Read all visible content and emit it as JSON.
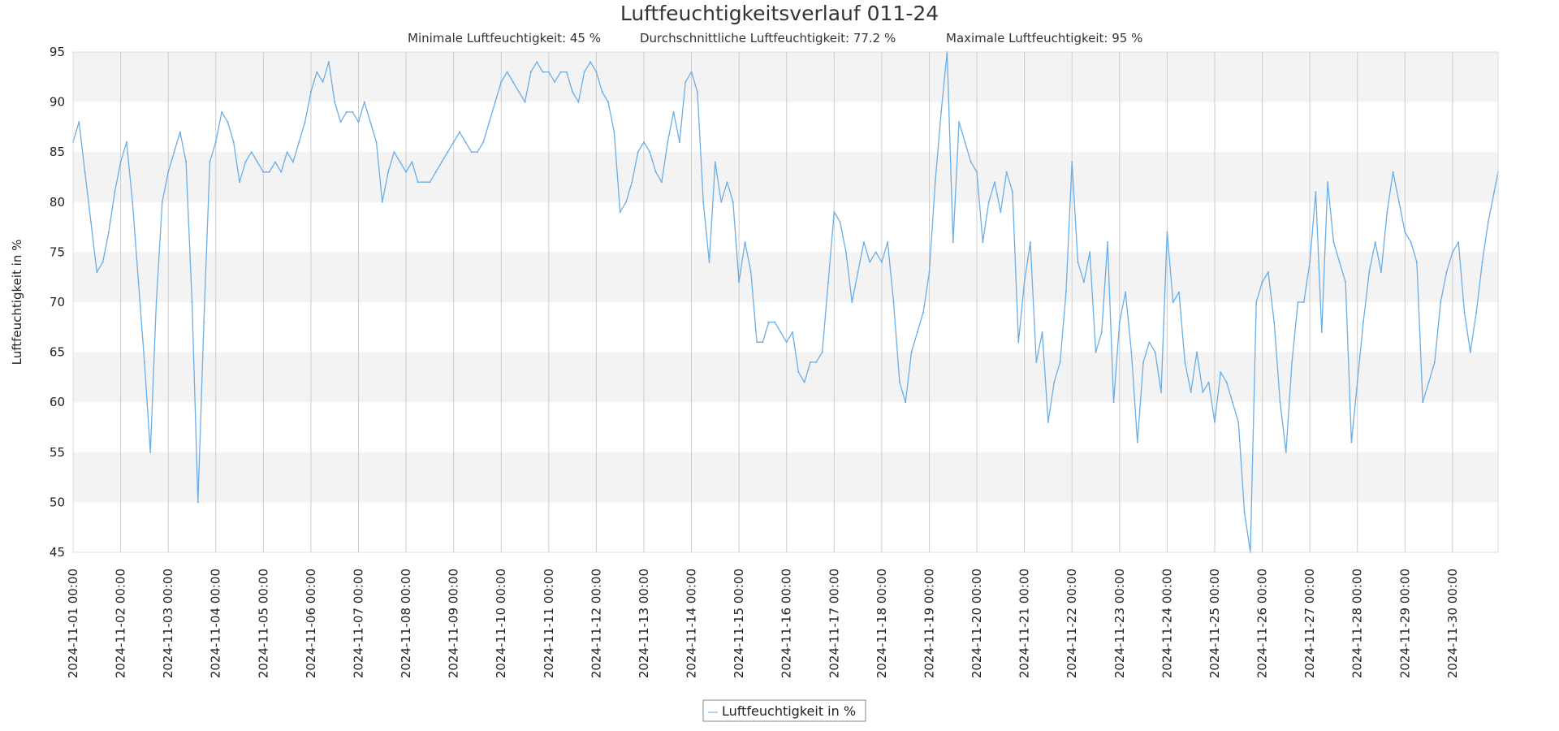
{
  "chart_data": {
    "type": "line",
    "title": "Luftfeuchtigkeitsverlauf 011-24",
    "stats": {
      "min": "Minimale Luftfeuchtigkeit: 45 %",
      "avg": "Durchschnittliche Luftfeuchtigkeit: 77.2 %",
      "max": "Maximale Luftfeuchtigkeit: 95 %"
    },
    "xlabel": "",
    "ylabel": "Luftfeuchtigkeit in %",
    "ylim": [
      45,
      95
    ],
    "xlim": [
      "2024-11-01 00:00",
      "2024-11-30 23:00"
    ],
    "y_ticks": [
      45,
      50,
      55,
      60,
      65,
      70,
      75,
      80,
      85,
      90,
      95
    ],
    "x_tick_labels": [
      "2024-11-01 00:00",
      "2024-11-02 00:00",
      "2024-11-03 00:00",
      "2024-11-04 00:00",
      "2024-11-05 00:00",
      "2024-11-06 00:00",
      "2024-11-07 00:00",
      "2024-11-08 00:00",
      "2024-11-09 00:00",
      "2024-11-10 00:00",
      "2024-11-11 00:00",
      "2024-11-12 00:00",
      "2024-11-13 00:00",
      "2024-11-14 00:00",
      "2024-11-15 00:00",
      "2024-11-16 00:00",
      "2024-11-17 00:00",
      "2024-11-18 00:00",
      "2024-11-19 00:00",
      "2024-11-20 00:00",
      "2024-11-21 00:00",
      "2024-11-22 00:00",
      "2024-11-23 00:00",
      "2024-11-24 00:00",
      "2024-11-25 00:00",
      "2024-11-26 00:00",
      "2024-11-27 00:00",
      "2024-11-28 00:00",
      "2024-11-29 00:00",
      "2024-11-30 00:00"
    ],
    "grid": true,
    "legend_position": "bottom-center",
    "series": [
      {
        "name": "Luftfeuchtigkeit in %",
        "color": "#6aaee8",
        "points": [
          [
            "2024-11-01 00:00",
            86
          ],
          [
            "2024-11-01 03:00",
            88
          ],
          [
            "2024-11-01 06:00",
            83
          ],
          [
            "2024-11-01 09:00",
            78
          ],
          [
            "2024-11-01 12:00",
            73
          ],
          [
            "2024-11-01 15:00",
            74
          ],
          [
            "2024-11-01 18:00",
            77
          ],
          [
            "2024-11-01 21:00",
            81
          ],
          [
            "2024-11-02 00:00",
            84
          ],
          [
            "2024-11-02 03:00",
            86
          ],
          [
            "2024-11-02 06:00",
            80
          ],
          [
            "2024-11-02 09:00",
            72
          ],
          [
            "2024-11-02 12:00",
            64
          ],
          [
            "2024-11-02 15:00",
            55
          ],
          [
            "2024-11-02 18:00",
            70
          ],
          [
            "2024-11-02 21:00",
            80
          ],
          [
            "2024-11-03 00:00",
            83
          ],
          [
            "2024-11-03 03:00",
            85
          ],
          [
            "2024-11-03 06:00",
            87
          ],
          [
            "2024-11-03 09:00",
            84
          ],
          [
            "2024-11-03 12:00",
            70
          ],
          [
            "2024-11-03 15:00",
            50
          ],
          [
            "2024-11-03 18:00",
            68
          ],
          [
            "2024-11-03 21:00",
            84
          ],
          [
            "2024-11-04 00:00",
            86
          ],
          [
            "2024-11-04 03:00",
            89
          ],
          [
            "2024-11-04 06:00",
            88
          ],
          [
            "2024-11-04 09:00",
            86
          ],
          [
            "2024-11-04 12:00",
            82
          ],
          [
            "2024-11-04 15:00",
            84
          ],
          [
            "2024-11-04 18:00",
            85
          ],
          [
            "2024-11-04 21:00",
            84
          ],
          [
            "2024-11-05 00:00",
            83
          ],
          [
            "2024-11-05 03:00",
            83
          ],
          [
            "2024-11-05 06:00",
            84
          ],
          [
            "2024-11-05 09:00",
            83
          ],
          [
            "2024-11-05 12:00",
            85
          ],
          [
            "2024-11-05 15:00",
            84
          ],
          [
            "2024-11-05 18:00",
            86
          ],
          [
            "2024-11-05 21:00",
            88
          ],
          [
            "2024-11-06 00:00",
            91
          ],
          [
            "2024-11-06 03:00",
            93
          ],
          [
            "2024-11-06 06:00",
            92
          ],
          [
            "2024-11-06 09:00",
            94
          ],
          [
            "2024-11-06 12:00",
            90
          ],
          [
            "2024-11-06 15:00",
            88
          ],
          [
            "2024-11-06 18:00",
            89
          ],
          [
            "2024-11-06 21:00",
            89
          ],
          [
            "2024-11-07 00:00",
            88
          ],
          [
            "2024-11-07 03:00",
            90
          ],
          [
            "2024-11-07 06:00",
            88
          ],
          [
            "2024-11-07 09:00",
            86
          ],
          [
            "2024-11-07 12:00",
            80
          ],
          [
            "2024-11-07 15:00",
            83
          ],
          [
            "2024-11-07 18:00",
            85
          ],
          [
            "2024-11-07 21:00",
            84
          ],
          [
            "2024-11-08 00:00",
            83
          ],
          [
            "2024-11-08 03:00",
            84
          ],
          [
            "2024-11-08 06:00",
            82
          ],
          [
            "2024-11-08 09:00",
            82
          ],
          [
            "2024-11-08 12:00",
            82
          ],
          [
            "2024-11-08 15:00",
            83
          ],
          [
            "2024-11-08 18:00",
            84
          ],
          [
            "2024-11-08 21:00",
            85
          ],
          [
            "2024-11-09 00:00",
            86
          ],
          [
            "2024-11-09 03:00",
            87
          ],
          [
            "2024-11-09 06:00",
            86
          ],
          [
            "2024-11-09 09:00",
            85
          ],
          [
            "2024-11-09 12:00",
            85
          ],
          [
            "2024-11-09 15:00",
            86
          ],
          [
            "2024-11-09 18:00",
            88
          ],
          [
            "2024-11-09 21:00",
            90
          ],
          [
            "2024-11-10 00:00",
            92
          ],
          [
            "2024-11-10 03:00",
            93
          ],
          [
            "2024-11-10 06:00",
            92
          ],
          [
            "2024-11-10 09:00",
            91
          ],
          [
            "2024-11-10 12:00",
            90
          ],
          [
            "2024-11-10 15:00",
            93
          ],
          [
            "2024-11-10 18:00",
            94
          ],
          [
            "2024-11-10 21:00",
            93
          ],
          [
            "2024-11-11 00:00",
            93
          ],
          [
            "2024-11-11 03:00",
            92
          ],
          [
            "2024-11-11 06:00",
            93
          ],
          [
            "2024-11-11 09:00",
            93
          ],
          [
            "2024-11-11 12:00",
            91
          ],
          [
            "2024-11-11 15:00",
            90
          ],
          [
            "2024-11-11 18:00",
            93
          ],
          [
            "2024-11-11 21:00",
            94
          ],
          [
            "2024-11-12 00:00",
            93
          ],
          [
            "2024-11-12 03:00",
            91
          ],
          [
            "2024-11-12 06:00",
            90
          ],
          [
            "2024-11-12 09:00",
            87
          ],
          [
            "2024-11-12 12:00",
            79
          ],
          [
            "2024-11-12 15:00",
            80
          ],
          [
            "2024-11-12 18:00",
            82
          ],
          [
            "2024-11-12 21:00",
            85
          ],
          [
            "2024-11-13 00:00",
            86
          ],
          [
            "2024-11-13 03:00",
            85
          ],
          [
            "2024-11-13 06:00",
            83
          ],
          [
            "2024-11-13 09:00",
            82
          ],
          [
            "2024-11-13 12:00",
            86
          ],
          [
            "2024-11-13 15:00",
            89
          ],
          [
            "2024-11-13 18:00",
            86
          ],
          [
            "2024-11-13 21:00",
            92
          ],
          [
            "2024-11-14 00:00",
            93
          ],
          [
            "2024-11-14 03:00",
            91
          ],
          [
            "2024-11-14 06:00",
            80
          ],
          [
            "2024-11-14 09:00",
            74
          ],
          [
            "2024-11-14 12:00",
            84
          ],
          [
            "2024-11-14 15:00",
            80
          ],
          [
            "2024-11-14 18:00",
            82
          ],
          [
            "2024-11-14 21:00",
            80
          ],
          [
            "2024-11-15 00:00",
            72
          ],
          [
            "2024-11-15 03:00",
            76
          ],
          [
            "2024-11-15 06:00",
            73
          ],
          [
            "2024-11-15 09:00",
            66
          ],
          [
            "2024-11-15 12:00",
            66
          ],
          [
            "2024-11-15 15:00",
            68
          ],
          [
            "2024-11-15 18:00",
            68
          ],
          [
            "2024-11-15 21:00",
            67
          ],
          [
            "2024-11-16 00:00",
            66
          ],
          [
            "2024-11-16 03:00",
            67
          ],
          [
            "2024-11-16 06:00",
            63
          ],
          [
            "2024-11-16 09:00",
            62
          ],
          [
            "2024-11-16 12:00",
            64
          ],
          [
            "2024-11-16 15:00",
            64
          ],
          [
            "2024-11-16 18:00",
            65
          ],
          [
            "2024-11-16 21:00",
            72
          ],
          [
            "2024-11-17 00:00",
            79
          ],
          [
            "2024-11-17 03:00",
            78
          ],
          [
            "2024-11-17 06:00",
            75
          ],
          [
            "2024-11-17 09:00",
            70
          ],
          [
            "2024-11-17 12:00",
            73
          ],
          [
            "2024-11-17 15:00",
            76
          ],
          [
            "2024-11-17 18:00",
            74
          ],
          [
            "2024-11-17 21:00",
            75
          ],
          [
            "2024-11-18 00:00",
            74
          ],
          [
            "2024-11-18 03:00",
            76
          ],
          [
            "2024-11-18 06:00",
            70
          ],
          [
            "2024-11-18 09:00",
            62
          ],
          [
            "2024-11-18 12:00",
            60
          ],
          [
            "2024-11-18 15:00",
            65
          ],
          [
            "2024-11-18 18:00",
            67
          ],
          [
            "2024-11-18 21:00",
            69
          ],
          [
            "2024-11-19 00:00",
            73
          ],
          [
            "2024-11-19 03:00",
            82
          ],
          [
            "2024-11-19 06:00",
            89
          ],
          [
            "2024-11-19 09:00",
            95
          ],
          [
            "2024-11-19 12:00",
            76
          ],
          [
            "2024-11-19 15:00",
            88
          ],
          [
            "2024-11-19 18:00",
            86
          ],
          [
            "2024-11-19 21:00",
            84
          ],
          [
            "2024-11-20 00:00",
            83
          ],
          [
            "2024-11-20 03:00",
            76
          ],
          [
            "2024-11-20 06:00",
            80
          ],
          [
            "2024-11-20 09:00",
            82
          ],
          [
            "2024-11-20 12:00",
            79
          ],
          [
            "2024-11-20 15:00",
            83
          ],
          [
            "2024-11-20 18:00",
            81
          ],
          [
            "2024-11-20 21:00",
            66
          ],
          [
            "2024-11-21 00:00",
            72
          ],
          [
            "2024-11-21 03:00",
            76
          ],
          [
            "2024-11-21 06:00",
            64
          ],
          [
            "2024-11-21 09:00",
            67
          ],
          [
            "2024-11-21 12:00",
            58
          ],
          [
            "2024-11-21 15:00",
            62
          ],
          [
            "2024-11-21 18:00",
            64
          ],
          [
            "2024-11-21 21:00",
            71
          ],
          [
            "2024-11-22 00:00",
            84
          ],
          [
            "2024-11-22 03:00",
            74
          ],
          [
            "2024-11-22 06:00",
            72
          ],
          [
            "2024-11-22 09:00",
            75
          ],
          [
            "2024-11-22 12:00",
            65
          ],
          [
            "2024-11-22 15:00",
            67
          ],
          [
            "2024-11-22 18:00",
            76
          ],
          [
            "2024-11-22 21:00",
            60
          ],
          [
            "2024-11-23 00:00",
            68
          ],
          [
            "2024-11-23 03:00",
            71
          ],
          [
            "2024-11-23 06:00",
            65
          ],
          [
            "2024-11-23 09:00",
            56
          ],
          [
            "2024-11-23 12:00",
            64
          ],
          [
            "2024-11-23 15:00",
            66
          ],
          [
            "2024-11-23 18:00",
            65
          ],
          [
            "2024-11-23 21:00",
            61
          ],
          [
            "2024-11-24 00:00",
            77
          ],
          [
            "2024-11-24 03:00",
            70
          ],
          [
            "2024-11-24 06:00",
            71
          ],
          [
            "2024-11-24 09:00",
            64
          ],
          [
            "2024-11-24 12:00",
            61
          ],
          [
            "2024-11-24 15:00",
            65
          ],
          [
            "2024-11-24 18:00",
            61
          ],
          [
            "2024-11-24 21:00",
            62
          ],
          [
            "2024-11-25 00:00",
            58
          ],
          [
            "2024-11-25 03:00",
            63
          ],
          [
            "2024-11-25 06:00",
            62
          ],
          [
            "2024-11-25 09:00",
            60
          ],
          [
            "2024-11-25 12:00",
            58
          ],
          [
            "2024-11-25 15:00",
            49
          ],
          [
            "2024-11-25 18:00",
            45
          ],
          [
            "2024-11-25 21:00",
            70
          ],
          [
            "2024-11-26 00:00",
            72
          ],
          [
            "2024-11-26 03:00",
            73
          ],
          [
            "2024-11-26 06:00",
            68
          ],
          [
            "2024-11-26 09:00",
            60
          ],
          [
            "2024-11-26 12:00",
            55
          ],
          [
            "2024-11-26 15:00",
            64
          ],
          [
            "2024-11-26 18:00",
            70
          ],
          [
            "2024-11-26 21:00",
            70
          ],
          [
            "2024-11-27 00:00",
            74
          ],
          [
            "2024-11-27 03:00",
            81
          ],
          [
            "2024-11-27 06:00",
            67
          ],
          [
            "2024-11-27 09:00",
            82
          ],
          [
            "2024-11-27 12:00",
            76
          ],
          [
            "2024-11-27 15:00",
            74
          ],
          [
            "2024-11-27 18:00",
            72
          ],
          [
            "2024-11-27 21:00",
            56
          ],
          [
            "2024-11-28 00:00",
            62
          ],
          [
            "2024-11-28 03:00",
            68
          ],
          [
            "2024-11-28 06:00",
            73
          ],
          [
            "2024-11-28 09:00",
            76
          ],
          [
            "2024-11-28 12:00",
            73
          ],
          [
            "2024-11-28 15:00",
            79
          ],
          [
            "2024-11-28 18:00",
            83
          ],
          [
            "2024-11-28 21:00",
            80
          ],
          [
            "2024-11-29 00:00",
            77
          ],
          [
            "2024-11-29 03:00",
            76
          ],
          [
            "2024-11-29 06:00",
            74
          ],
          [
            "2024-11-29 09:00",
            60
          ],
          [
            "2024-11-29 12:00",
            62
          ],
          [
            "2024-11-29 15:00",
            64
          ],
          [
            "2024-11-29 18:00",
            70
          ],
          [
            "2024-11-29 21:00",
            73
          ],
          [
            "2024-11-30 00:00",
            75
          ],
          [
            "2024-11-30 03:00",
            76
          ],
          [
            "2024-11-30 06:00",
            69
          ],
          [
            "2024-11-30 09:00",
            65
          ],
          [
            "2024-11-30 12:00",
            69
          ],
          [
            "2024-11-30 15:00",
            74
          ],
          [
            "2024-11-30 18:00",
            78
          ],
          [
            "2024-11-30 21:00",
            81
          ],
          [
            "2024-11-30 23:00",
            83
          ]
        ]
      }
    ]
  }
}
